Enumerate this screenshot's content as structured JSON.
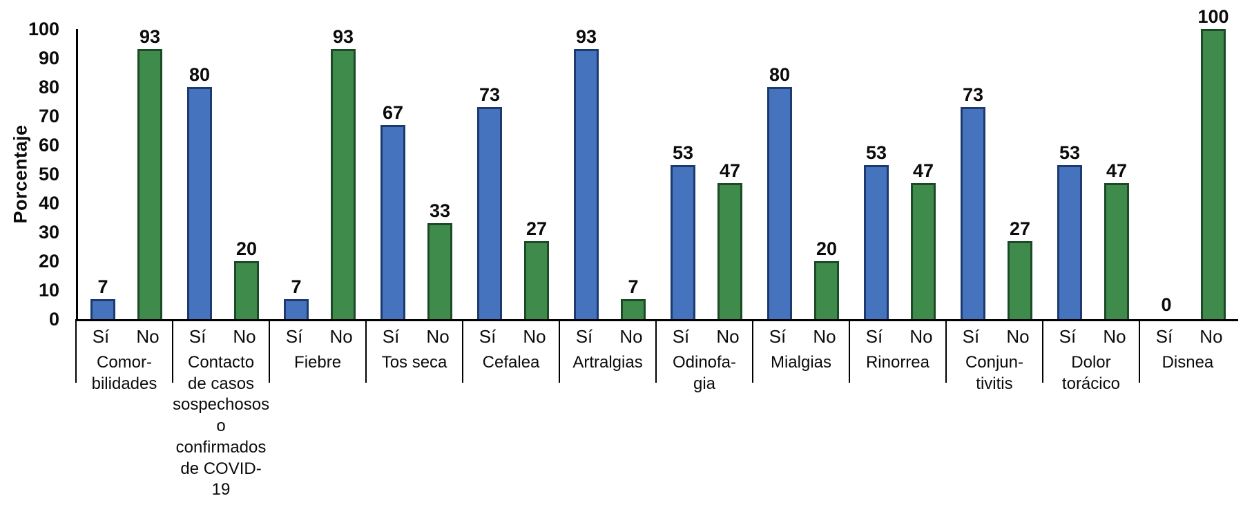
{
  "chart_data": {
    "type": "bar",
    "title": "",
    "ylabel": "Porcentaje",
    "xlabel": "",
    "ylim": [
      0,
      100
    ],
    "yticks": [
      0,
      10,
      20,
      30,
      40,
      50,
      60,
      70,
      80,
      90,
      100
    ],
    "grid": false,
    "legend_position": "none",
    "bar_sublabels": [
      "Sí",
      "No"
    ],
    "categories": [
      "Comorbilidades",
      "Contacto de casos sospechosos o confirmados de COVID-19",
      "Fiebre",
      "Tos seca",
      "Cefalea",
      "Artralgias",
      "Odinofagia",
      "Mialgias",
      "Rinorrea",
      "Conjuntivitis",
      "Dolor torácico",
      "Disnea"
    ],
    "category_display_lines": [
      [
        "Comor-",
        "bilidades"
      ],
      [
        "Contacto",
        "de casos",
        "sospechosos",
        "o confirmados",
        "de COVID-19"
      ],
      [
        "Fiebre"
      ],
      [
        "Tos seca"
      ],
      [
        "Cefalea"
      ],
      [
        "Artralgias"
      ],
      [
        "Odinofa-",
        "gia"
      ],
      [
        "Mialgias"
      ],
      [
        "Rinorrea"
      ],
      [
        "Conjun-",
        "tivitis"
      ],
      [
        "Dolor",
        "torácico"
      ],
      [
        "Disnea"
      ]
    ],
    "series": [
      {
        "name": "Sí",
        "color": "#4573BE",
        "border_color": "#1C3A6E",
        "values": [
          7,
          80,
          7,
          67,
          73,
          93,
          53,
          80,
          53,
          73,
          53,
          0
        ]
      },
      {
        "name": "No",
        "color": "#3F8B4C",
        "border_color": "#1C4A26",
        "values": [
          93,
          20,
          93,
          33,
          27,
          7,
          47,
          20,
          47,
          27,
          47,
          100
        ]
      }
    ]
  },
  "colors": {
    "axis": "#000000",
    "text": "#0b0b0b",
    "background": "#ffffff"
  }
}
